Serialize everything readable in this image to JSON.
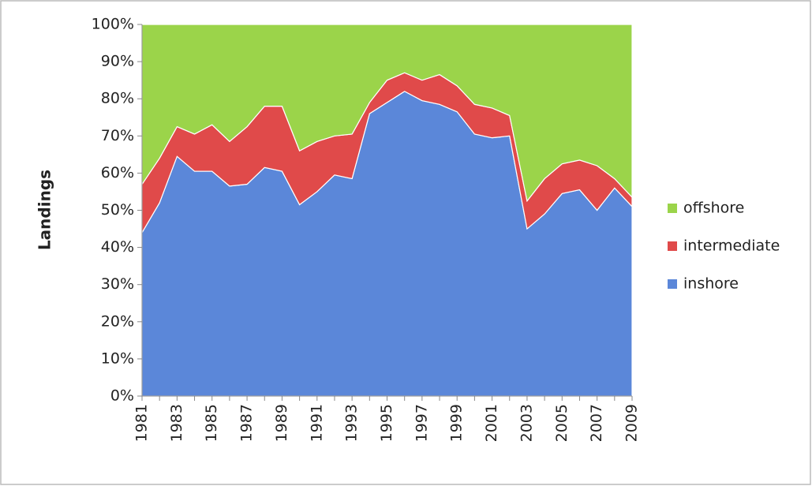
{
  "chart_data": {
    "type": "stacked_area",
    "y_label": "Landings",
    "categories": [
      "1981",
      null,
      "1983",
      null,
      "1985",
      null,
      "1987",
      null,
      "1989",
      null,
      "1991",
      null,
      "1993",
      null,
      "1995",
      null,
      "1997",
      null,
      "1999",
      null,
      "2001",
      null,
      "2003",
      null,
      "2005",
      null,
      "2007",
      null,
      "2009"
    ],
    "series": [
      {
        "name": "inshore",
        "color": "#5b87d9",
        "values": [
          44,
          52,
          64.5,
          60.5,
          60.5,
          56.5,
          57,
          61.5,
          60.5,
          51.5,
          55,
          59.5,
          58.5,
          76,
          79,
          82,
          79.5,
          78.5,
          76.5,
          70.5,
          69.5,
          70,
          45,
          49,
          54.5,
          55.5,
          50,
          56,
          51
        ]
      },
      {
        "name": "intermediate",
        "color": "#e04a4a",
        "values": [
          13,
          12,
          8,
          10,
          12.5,
          12,
          15.5,
          16.5,
          17.5,
          14.5,
          13.5,
          10.5,
          12,
          3,
          6,
          5,
          5.5,
          8,
          7,
          8,
          8,
          5.5,
          7.5,
          9.5,
          8,
          8,
          12,
          2.5,
          2.5
        ]
      },
      {
        "name": "offshore",
        "color": "#9bd44a",
        "values": [
          43,
          36,
          27.5,
          29.5,
          27,
          31.5,
          27.5,
          22,
          22,
          34,
          31.5,
          30,
          29.5,
          21,
          15,
          13,
          15,
          13.5,
          16.5,
          21.5,
          22.5,
          24.5,
          47.5,
          41.5,
          37.5,
          36.5,
          38,
          41.5,
          46.5
        ]
      }
    ],
    "ylim": [
      0,
      100
    ],
    "yticks": [
      {
        "value": 0,
        "label": "0%"
      },
      {
        "value": 10,
        "label": "10%"
      },
      {
        "value": 20,
        "label": "20%"
      },
      {
        "value": 30,
        "label": "30%"
      },
      {
        "value": 40,
        "label": "40%"
      },
      {
        "value": 50,
        "label": "50%"
      },
      {
        "value": 60,
        "label": "60%"
      },
      {
        "value": 70,
        "label": "70%"
      },
      {
        "value": 80,
        "label": "80%"
      },
      {
        "value": 90,
        "label": "90%"
      },
      {
        "value": 100,
        "label": "100%"
      }
    ],
    "legend": "right"
  }
}
